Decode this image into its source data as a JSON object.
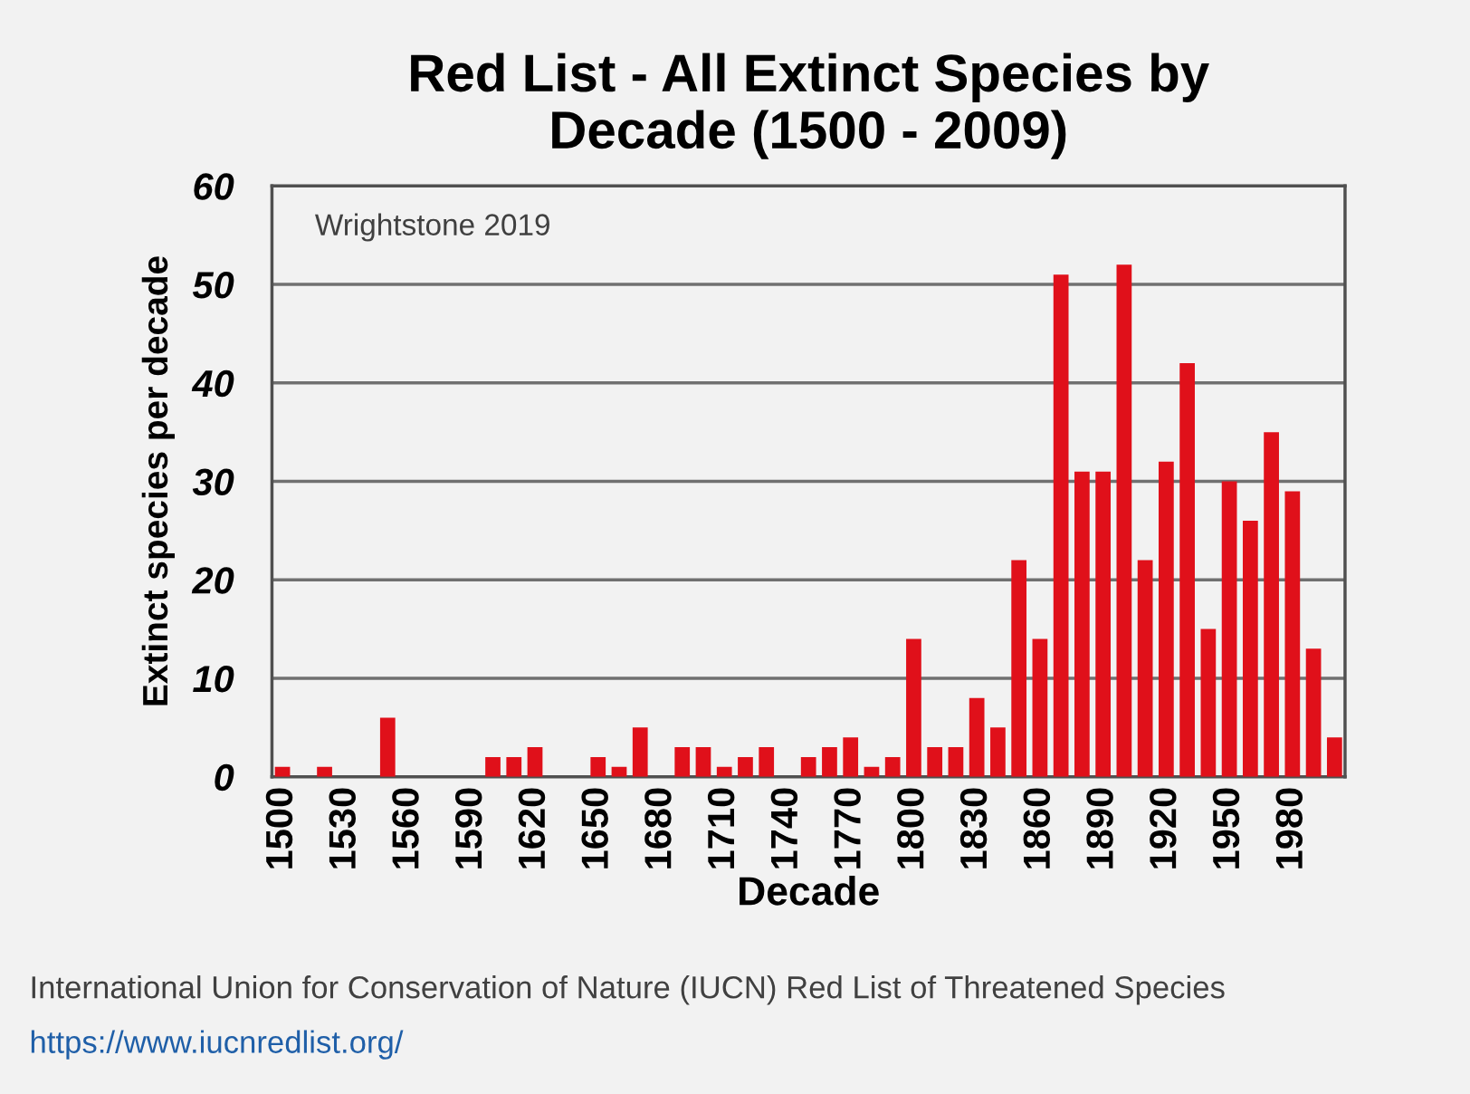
{
  "chart_data": {
    "type": "bar",
    "title": "Red List - All Extinct Species by\nDecade (1500 - 2009)",
    "xlabel": "Decade",
    "ylabel": "Extinct species per decade",
    "categories": [
      "1500",
      null,
      null,
      "1530",
      null,
      null,
      "1560",
      null,
      null,
      "1590",
      null,
      null,
      "1620",
      null,
      null,
      "1650",
      null,
      null,
      "1680",
      null,
      null,
      "1710",
      null,
      null,
      "1740",
      null,
      null,
      "1770",
      null,
      null,
      "1800",
      null,
      null,
      "1830",
      null,
      null,
      "1860",
      null,
      null,
      "1890",
      null,
      null,
      "1920",
      null,
      null,
      "1950",
      null,
      null,
      "1980",
      null,
      null
    ],
    "values": [
      1,
      0,
      1,
      0,
      0,
      6,
      0,
      0,
      0,
      0,
      2,
      2,
      3,
      0,
      0,
      2,
      1,
      5,
      0,
      3,
      3,
      1,
      2,
      3,
      0,
      2,
      3,
      4,
      1,
      2,
      14,
      3,
      3,
      8,
      5,
      22,
      14,
      51,
      31,
      31,
      52,
      22,
      32,
      42,
      15,
      30,
      26,
      35,
      29,
      13,
      4
    ],
    "color": "#e0101a",
    "ylim": [
      0,
      60
    ],
    "yticks": [
      0,
      10,
      20,
      30,
      40,
      50,
      60
    ],
    "grid": "y",
    "annotations": [
      "Wrightstone 2019",
      "International Union for Conservation of Nature (IUCN) Red List of Threatened Species",
      "https://www.iucnredlist.org/"
    ]
  }
}
